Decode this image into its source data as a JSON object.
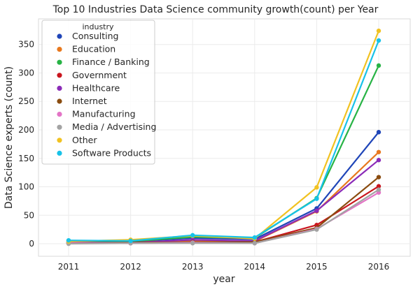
{
  "chart_data": {
    "type": "line",
    "title": "Top 10 Industries Data Science community growth(count) per Year",
    "xlabel": "year",
    "ylabel": "Data Science experts (count)",
    "x": [
      "2011",
      "2012",
      "2013",
      "2014",
      "2015",
      "2016"
    ],
    "yticks": [
      0,
      50,
      100,
      150,
      200,
      250,
      300,
      350
    ],
    "ylim": [
      -22,
      395
    ],
    "grid": true,
    "legend": {
      "title": "industry",
      "placement": "upper-left"
    },
    "series": [
      {
        "name": "Consulting",
        "color": "#1f45b8",
        "values": [
          3,
          4,
          10,
          8,
          62,
          196
        ]
      },
      {
        "name": "Education",
        "color": "#e8781d",
        "values": [
          2,
          3,
          5,
          4,
          57,
          161
        ]
      },
      {
        "name": "Finance / Banking",
        "color": "#27b345",
        "values": [
          5,
          4,
          12,
          10,
          80,
          313
        ]
      },
      {
        "name": "Government",
        "color": "#c9151e",
        "values": [
          1,
          1,
          2,
          3,
          33,
          101
        ]
      },
      {
        "name": "Healthcare",
        "color": "#8b2bb8",
        "values": [
          2,
          2,
          7,
          5,
          58,
          147
        ]
      },
      {
        "name": "Internet",
        "color": "#8a4c10",
        "values": [
          1,
          2,
          3,
          3,
          28,
          117
        ]
      },
      {
        "name": "Manufacturing",
        "color": "#e374c6",
        "values": [
          1,
          1,
          2,
          1,
          26,
          90
        ]
      },
      {
        "name": "Media / Advertising",
        "color": "#a3a3a3",
        "values": [
          0,
          1,
          1,
          1,
          25,
          95
        ]
      },
      {
        "name": "Other",
        "color": "#f1c221",
        "values": [
          4,
          7,
          14,
          9,
          99,
          374
        ]
      },
      {
        "name": "Software Products",
        "color": "#17c2e8",
        "values": [
          6,
          5,
          15,
          11,
          79,
          357
        ]
      }
    ]
  }
}
